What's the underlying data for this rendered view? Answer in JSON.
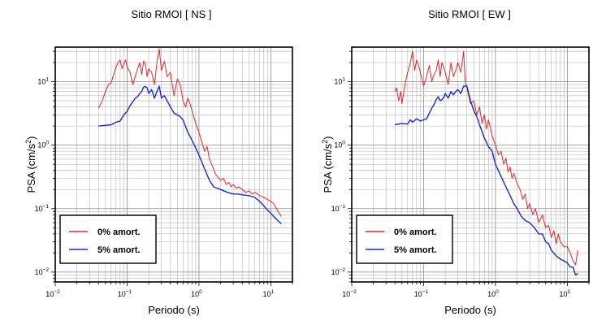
{
  "chart_data": [
    {
      "type": "line",
      "title": "Sitio RMOI [ NS ]",
      "xlabel": "Periodo (s)",
      "ylabel": "PSA (cm/s²)",
      "xscale": "log",
      "yscale": "log",
      "xlim": [
        0.01,
        20
      ],
      "ylim": [
        0.007,
        35
      ],
      "x_ticks": [
        "10-2",
        "10-1",
        "100",
        "101"
      ],
      "y_ticks": [
        "10-2",
        "10-1",
        "100",
        "101"
      ],
      "grid": true,
      "legend": {
        "placement": "bottom-left",
        "entries": [
          "0% amort.",
          "5% amort."
        ]
      },
      "series": [
        {
          "name": "0% amort.",
          "color": "#e8262a",
          "x": [
            0.04,
            0.045,
            0.05,
            0.055,
            0.06,
            0.065,
            0.07,
            0.075,
            0.08,
            0.085,
            0.09,
            0.095,
            0.1,
            0.11,
            0.12,
            0.13,
            0.14,
            0.15,
            0.16,
            0.17,
            0.18,
            0.19,
            0.2,
            0.22,
            0.24,
            0.26,
            0.28,
            0.3,
            0.33,
            0.36,
            0.4,
            0.45,
            0.5,
            0.55,
            0.6,
            0.65,
            0.7,
            0.75,
            0.8,
            0.9,
            1.0,
            1.1,
            1.2,
            1.3,
            1.4,
            1.5,
            1.6,
            1.7,
            1.8,
            2.0,
            2.2,
            2.4,
            2.6,
            2.8,
            3.0,
            3.3,
            3.6,
            4.0,
            4.5,
            5.0,
            5.5,
            6.0,
            7.0,
            8.0,
            9.0,
            10.0,
            11.0,
            12.0,
            13.0,
            14.0
          ],
          "values": [
            3.8,
            5.0,
            7.0,
            9.0,
            9.5,
            13.0,
            17.0,
            20.0,
            22.0,
            16.0,
            19.0,
            22.0,
            17.0,
            14.0,
            9.0,
            12.0,
            16.0,
            20.0,
            13.0,
            21.0,
            19.0,
            12.0,
            16.0,
            14.0,
            9.0,
            20.0,
            33.0,
            15.0,
            21.0,
            12.0,
            14.0,
            6.0,
            11.0,
            9.0,
            5.0,
            4.0,
            5.5,
            4.5,
            3.5,
            2.2,
            1.6,
            1.1,
            0.8,
            0.95,
            0.6,
            0.5,
            0.42,
            0.35,
            0.32,
            0.28,
            0.3,
            0.24,
            0.26,
            0.22,
            0.24,
            0.21,
            0.22,
            0.2,
            0.18,
            0.19,
            0.17,
            0.18,
            0.16,
            0.15,
            0.14,
            0.13,
            0.12,
            0.1,
            0.085,
            0.075
          ]
        },
        {
          "name": "5% amort.",
          "color": "#1a28d8",
          "x": [
            0.04,
            0.05,
            0.06,
            0.07,
            0.08,
            0.09,
            0.1,
            0.11,
            0.12,
            0.13,
            0.14,
            0.15,
            0.16,
            0.17,
            0.18,
            0.19,
            0.2,
            0.22,
            0.24,
            0.26,
            0.28,
            0.3,
            0.33,
            0.36,
            0.4,
            0.45,
            0.5,
            0.55,
            0.6,
            0.7,
            0.8,
            0.9,
            1.0,
            1.2,
            1.4,
            1.6,
            1.8,
            2.0,
            2.5,
            3.0,
            3.5,
            4.0,
            5.0,
            6.0,
            7.0,
            8.0,
            9.0,
            10.0,
            11.0,
            12.0,
            13.0,
            14.0
          ],
          "values": [
            2.0,
            2.05,
            2.1,
            2.3,
            2.4,
            3.0,
            3.4,
            4.2,
            4.8,
            5.5,
            5.8,
            6.5,
            7.0,
            8.2,
            8.4,
            8.0,
            6.5,
            7.5,
            5.5,
            7.0,
            8.5,
            5.5,
            6.0,
            5.0,
            4.0,
            3.2,
            3.0,
            2.8,
            2.5,
            1.6,
            1.2,
            0.9,
            0.7,
            0.42,
            0.28,
            0.22,
            0.21,
            0.2,
            0.18,
            0.17,
            0.17,
            0.165,
            0.16,
            0.15,
            0.13,
            0.11,
            0.095,
            0.085,
            0.075,
            0.068,
            0.062,
            0.058
          ]
        }
      ]
    },
    {
      "type": "line",
      "title": "Sitio RMOI [ EW ]",
      "xlabel": "Periodo (s)",
      "ylabel": "PSA (cm/s²)",
      "xscale": "log",
      "yscale": "log",
      "xlim": [
        0.01,
        20
      ],
      "ylim": [
        0.007,
        35
      ],
      "x_ticks": [
        "10-2",
        "10-1",
        "100",
        "101"
      ],
      "y_ticks": [
        "10-2",
        "10-1",
        "100",
        "101"
      ],
      "grid": true,
      "legend": {
        "placement": "bottom-left",
        "entries": [
          "0% amort.",
          "5% amort."
        ]
      },
      "series": [
        {
          "name": "0% amort.",
          "color": "#e8262a",
          "x": [
            0.04,
            0.042,
            0.045,
            0.048,
            0.05,
            0.055,
            0.06,
            0.065,
            0.07,
            0.075,
            0.08,
            0.085,
            0.09,
            0.1,
            0.11,
            0.12,
            0.13,
            0.14,
            0.15,
            0.16,
            0.17,
            0.18,
            0.19,
            0.2,
            0.22,
            0.24,
            0.26,
            0.28,
            0.3,
            0.33,
            0.36,
            0.38,
            0.4,
            0.45,
            0.5,
            0.55,
            0.6,
            0.65,
            0.7,
            0.75,
            0.8,
            0.9,
            1.0,
            1.1,
            1.2,
            1.3,
            1.4,
            1.5,
            1.6,
            1.7,
            1.8,
            2.0,
            2.2,
            2.4,
            2.6,
            2.8,
            3.0,
            3.3,
            3.6,
            4.0,
            4.5,
            5.0,
            5.5,
            6.0,
            6.5,
            7.0,
            7.5,
            8.0,
            9.0,
            10.0,
            11.0,
            12.0,
            13.0,
            14.0
          ],
          "values": [
            7.0,
            8.0,
            5.0,
            7.0,
            4.5,
            9.0,
            14.0,
            19.0,
            30.0,
            15.0,
            22.0,
            18.0,
            14.0,
            8.5,
            12.0,
            18.0,
            10.0,
            13.0,
            15.0,
            22.0,
            12.0,
            20.0,
            17.0,
            14.0,
            9.0,
            20.0,
            12.0,
            15.0,
            20.0,
            14.0,
            30.0,
            10.0,
            8.0,
            4.5,
            5.0,
            3.0,
            4.0,
            2.2,
            3.0,
            1.8,
            2.5,
            1.4,
            1.0,
            0.7,
            0.8,
            0.5,
            0.62,
            0.38,
            0.45,
            0.3,
            0.36,
            0.25,
            0.2,
            0.14,
            0.17,
            0.1,
            0.12,
            0.08,
            0.1,
            0.06,
            0.08,
            0.05,
            0.055,
            0.035,
            0.045,
            0.028,
            0.04,
            0.03,
            0.025,
            0.025,
            0.02,
            0.015,
            0.013,
            0.022
          ]
        },
        {
          "name": "5% amort.",
          "color": "#1a28d8",
          "x": [
            0.04,
            0.05,
            0.06,
            0.065,
            0.07,
            0.08,
            0.09,
            0.1,
            0.11,
            0.12,
            0.13,
            0.14,
            0.15,
            0.16,
            0.17,
            0.18,
            0.19,
            0.2,
            0.22,
            0.24,
            0.26,
            0.28,
            0.3,
            0.33,
            0.36,
            0.4,
            0.45,
            0.5,
            0.55,
            0.6,
            0.7,
            0.8,
            0.9,
            1.0,
            1.2,
            1.4,
            1.6,
            1.8,
            2.0,
            2.3,
            2.6,
            3.0,
            3.5,
            4.0,
            4.5,
            5.0,
            5.5,
            6.0,
            7.0,
            8.0,
            9.0,
            10.0,
            11.0,
            12.0,
            13.0,
            14.0
          ],
          "values": [
            2.1,
            2.2,
            2.15,
            2.5,
            2.3,
            2.6,
            2.4,
            2.5,
            2.6,
            3.2,
            3.8,
            4.4,
            5.2,
            5.8,
            5.0,
            5.2,
            5.6,
            6.5,
            5.5,
            7.0,
            6.2,
            7.0,
            7.5,
            6.5,
            8.5,
            8.5,
            5.0,
            3.5,
            2.8,
            2.1,
            1.3,
            0.95,
            0.8,
            0.5,
            0.32,
            0.22,
            0.16,
            0.12,
            0.1,
            0.075,
            0.065,
            0.06,
            0.05,
            0.04,
            0.04,
            0.03,
            0.028,
            0.022,
            0.018,
            0.016,
            0.015,
            0.014,
            0.012,
            0.012,
            0.009,
            0.0095
          ]
        }
      ]
    }
  ]
}
